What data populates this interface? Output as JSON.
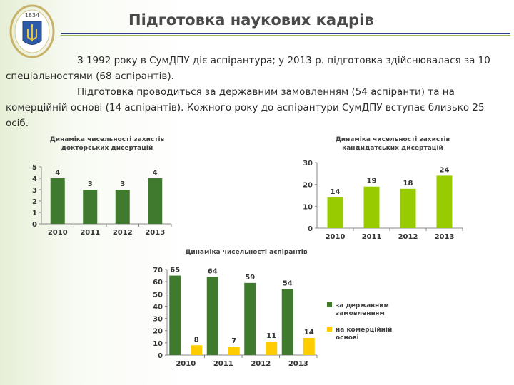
{
  "slide": {
    "title": "Підготовка наукових кадрів",
    "logo_text": "1834",
    "paragraph1": "З 1992 року в СумДПУ діє аспірантура; у 2013 р. підготовка здійснювалася за 10 спеціальностями (68 аспірантів).",
    "paragraph2": "Підготовка проводиться за державним замовленням (54 аспіранти) та на комерційній основі (14 аспірантів). Кожного року до аспірантури СумДПУ вступає близько 25 осіб."
  },
  "colors": {
    "dark_green": "#3f7a2e",
    "light_green": "#99cc00",
    "yellow": "#ffcc00",
    "title_rule": "#2e3f8f"
  },
  "chart_data": [
    {
      "type": "bar",
      "title": "Динаміка чисельності захистів докторських дисертацій",
      "categories": [
        "2010",
        "2011",
        "2012",
        "2013"
      ],
      "values": [
        4,
        3,
        3,
        4
      ],
      "ylim": [
        0,
        5
      ],
      "yticks": [
        0,
        1,
        2,
        3,
        4,
        5
      ],
      "color": "#3f7a2e"
    },
    {
      "type": "bar",
      "title": "Динаміка чисельності захистів кандидатських дисертацій",
      "categories": [
        "2010",
        "2011",
        "2012",
        "2013"
      ],
      "values": [
        14,
        19,
        18,
        24
      ],
      "ylim": [
        0,
        30
      ],
      "yticks": [
        0,
        10,
        20,
        30
      ],
      "color": "#99cc00"
    },
    {
      "type": "bar",
      "title": "Динаміка чисельності аспірантів",
      "categories": [
        "2010",
        "2011",
        "2012",
        "2013"
      ],
      "series": [
        {
          "name": "за державним замовленням",
          "values": [
            65,
            64,
            59,
            54
          ],
          "color": "#3f7a2e"
        },
        {
          "name": "на комерційній основі",
          "values": [
            8,
            7,
            11,
            14
          ],
          "color": "#ffcc00"
        }
      ],
      "ylim": [
        0,
        70
      ],
      "yticks": [
        0,
        10,
        20,
        30,
        40,
        50,
        60,
        70
      ],
      "legend": "right"
    }
  ]
}
